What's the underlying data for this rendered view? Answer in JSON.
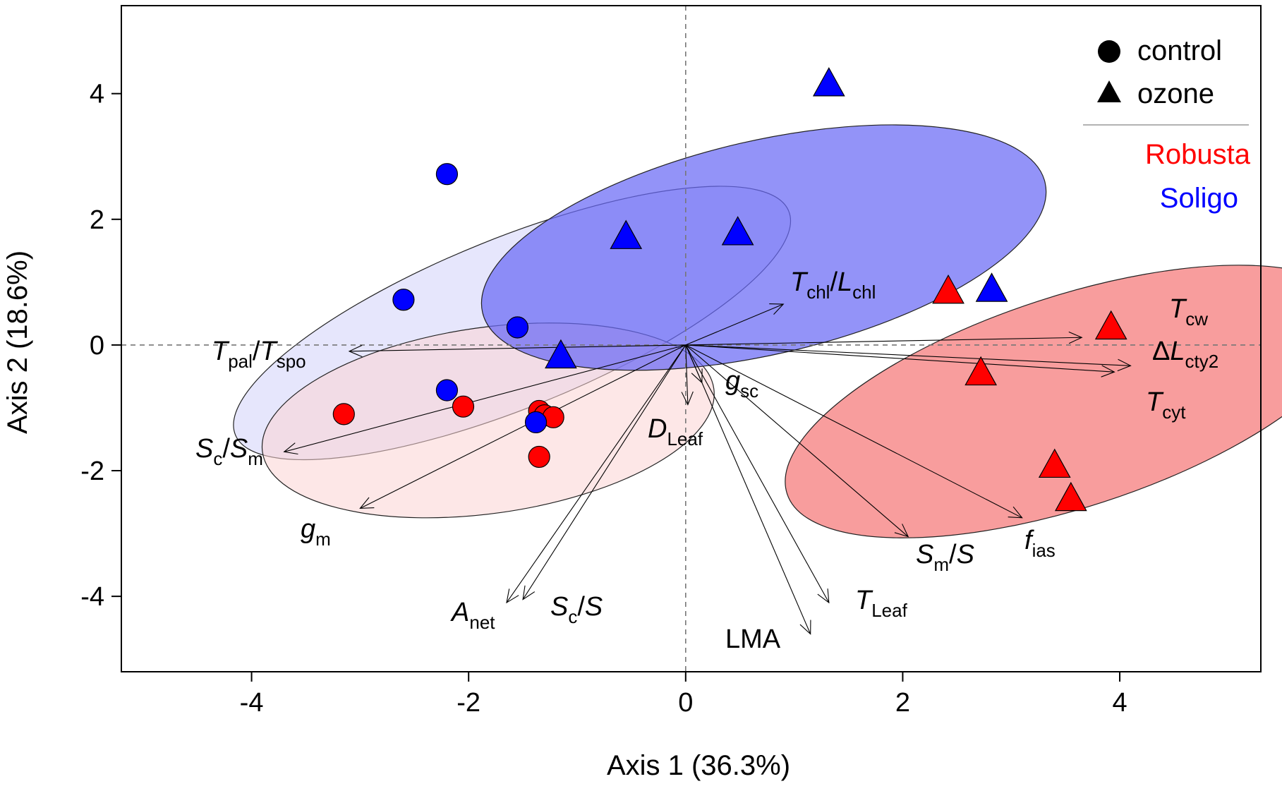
{
  "chart_data": {
    "type": "scatter",
    "title": "",
    "xlabel": "Axis 1 (36.3%)",
    "ylabel": "Axis 2 (18.6%)",
    "xlim": [
      -5.2,
      5.3
    ],
    "ylim": [
      -5.2,
      5.4
    ],
    "xticks": [
      -4,
      -2,
      0,
      2,
      4
    ],
    "yticks": [
      -4,
      -2,
      0,
      2,
      4
    ],
    "reference_lines": {
      "x": 0,
      "y": 0,
      "style": "dashed"
    },
    "legend": {
      "placement": "top-right",
      "shapes": [
        {
          "label": "control",
          "marker": "circle"
        },
        {
          "label": "ozone",
          "marker": "triangle"
        }
      ],
      "cultivars": [
        {
          "label": "Robusta",
          "color": "#ff0000"
        },
        {
          "label": "Soligo",
          "color": "#0000ff"
        }
      ]
    },
    "series": [
      {
        "name": "Robusta control",
        "marker": "circle",
        "color": "#ff0000",
        "points": [
          [
            -3.15,
            -1.1
          ],
          [
            -2.05,
            -0.98
          ],
          [
            -1.35,
            -1.05
          ],
          [
            -1.3,
            -1.12
          ],
          [
            -1.22,
            -1.15
          ],
          [
            -1.35,
            -1.78
          ]
        ]
      },
      {
        "name": "Soligo control",
        "marker": "circle",
        "color": "#0000ff",
        "points": [
          [
            -2.2,
            2.72
          ],
          [
            -2.6,
            0.72
          ],
          [
            -1.55,
            0.28
          ],
          [
            -2.2,
            -0.72
          ],
          [
            -1.38,
            -1.23
          ]
        ]
      },
      {
        "name": "Robusta ozone",
        "marker": "triangle",
        "color": "#ff0000",
        "points": [
          [
            2.42,
            0.85
          ],
          [
            3.92,
            0.28
          ],
          [
            2.72,
            -0.45
          ],
          [
            3.4,
            -1.92
          ],
          [
            3.55,
            -2.45
          ]
        ]
      },
      {
        "name": "Soligo ozone",
        "marker": "triangle",
        "color": "#0000ff",
        "points": [
          [
            1.32,
            4.15
          ],
          [
            -0.55,
            1.72
          ],
          [
            0.48,
            1.78
          ],
          [
            2.82,
            0.88
          ],
          [
            -1.15,
            -0.18
          ]
        ]
      }
    ],
    "ellipses": [
      {
        "group": "Soligo control",
        "fill": "#c8c8f8",
        "opacity": 0.45,
        "cx": -1.6,
        "cy": 0.35,
        "rx": 2.75,
        "ry": 1.35,
        "angle_deg": -22
      },
      {
        "group": "Robusta control",
        "fill": "#fbd3d3",
        "opacity": 0.55,
        "cx": -1.82,
        "cy": -1.2,
        "rx": 2.1,
        "ry": 1.48,
        "angle_deg": -8
      },
      {
        "group": "Soligo ozone",
        "fill": "#6a6af5",
        "opacity": 0.72,
        "cx": 0.72,
        "cy": 1.55,
        "rx": 2.66,
        "ry": 1.7,
        "angle_deg": -13
      },
      {
        "group": "Robusta ozone",
        "fill": "#f56a6a",
        "opacity": 0.66,
        "cx": 3.55,
        "cy": -0.9,
        "rx": 2.75,
        "ry": 1.68,
        "angle_deg": -18
      }
    ],
    "vectors": [
      {
        "label": "Tpal/Tspo",
        "base": "T",
        "italic_base": true,
        "sub": "pal",
        "suffix": "/",
        "base2": "T",
        "sub2": "spo",
        "x": -3.1,
        "y": -0.1
      },
      {
        "label": "Sc/Sm",
        "base": "S",
        "italic_base": true,
        "sub": "c",
        "suffix": "/",
        "base2": "S",
        "sub2": "m",
        "x": -3.7,
        "y": -1.7
      },
      {
        "label": "gm",
        "base": "g",
        "italic_base": true,
        "sub": "m",
        "x": -3.0,
        "y": -2.6
      },
      {
        "label": "Anet",
        "base": "A",
        "italic_base": true,
        "sub": "net",
        "x": -1.65,
        "y": -4.1
      },
      {
        "label": "Sc/S",
        "base": "S",
        "italic_base": true,
        "sub": "c",
        "suffix": "/",
        "base2": "S",
        "sub2": "",
        "x": -1.5,
        "y": -4.05
      },
      {
        "label": "DLeaf",
        "base": "D",
        "italic_base": true,
        "sub": "Leaf",
        "x": 0.02,
        "y": -0.95
      },
      {
        "label": "gsc",
        "base": "g",
        "italic_base": true,
        "sub": "sc",
        "x": 0.15,
        "y": -0.6
      },
      {
        "label": "LMA",
        "base": "LMA",
        "italic_base": false,
        "sub": "",
        "x": 1.15,
        "y": -4.6
      },
      {
        "label": "TLeaf",
        "base": "T",
        "italic_base": true,
        "sub": "Leaf",
        "x": 1.32,
        "y": -4.1
      },
      {
        "label": "Sm/S",
        "base": "S",
        "italic_base": true,
        "sub": "m",
        "suffix": "/",
        "base2": "S",
        "sub2": "",
        "x": 2.05,
        "y": -3.05
      },
      {
        "label": "fias",
        "base": "f",
        "italic_base": true,
        "sub": "ias",
        "x": 3.1,
        "y": -2.75
      },
      {
        "label": "Tchl/Lchl",
        "base": "T",
        "italic_base": true,
        "sub": "chl",
        "suffix": "/",
        "base2": "L",
        "sub2": "chl",
        "x": 0.9,
        "y": 0.65
      },
      {
        "label": "Tcw",
        "base": "T",
        "italic_base": true,
        "sub": "cw",
        "x": 3.65,
        "y": 0.12
      },
      {
        "label": "ΔLcty2",
        "base": "ΔL",
        "italic_base": true,
        "sub": "cty2",
        "x": 4.1,
        "y": -0.33
      },
      {
        "label": "Tcyt",
        "base": "T",
        "italic_base": true,
        "sub": "cyt",
        "x": 3.95,
        "y": -0.43
      }
    ]
  }
}
